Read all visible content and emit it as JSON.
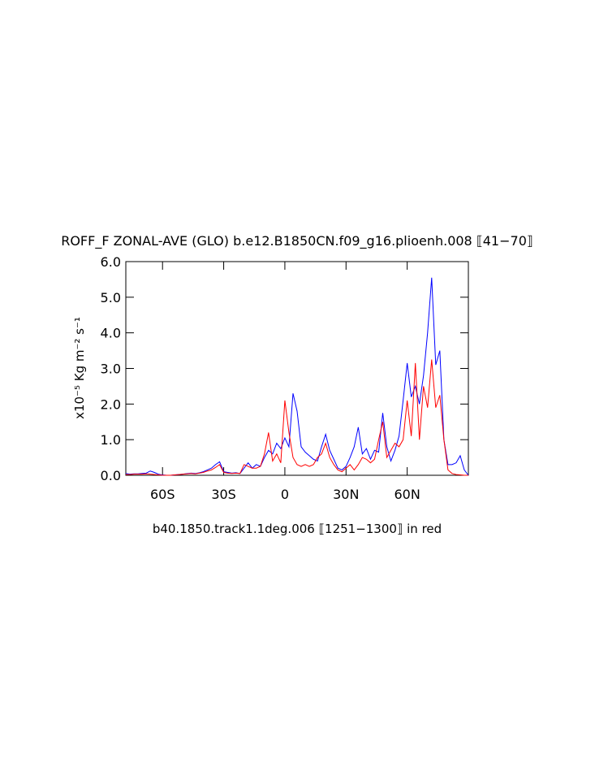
{
  "chart_data": {
    "type": "line",
    "title": "ROFF_F ZONAL-AVE (GLO) b.e12.B1850CN.f09_g16.plioenh.008 ⟦41−70⟧",
    "xlabel": "b40.1850.track1.1deg.006 ⟦1251−1300⟧ in red",
    "ylabel": "x10⁻⁵ Kg m⁻² s⁻¹",
    "x": [
      -78,
      -76,
      -74,
      -72,
      -70,
      -68,
      -66,
      -64,
      -62,
      -60,
      -58,
      -56,
      -54,
      -52,
      -50,
      -48,
      -46,
      -44,
      -42,
      -40,
      -38,
      -36,
      -34,
      -32,
      -30,
      -28,
      -26,
      -24,
      -22,
      -20,
      -18,
      -16,
      -14,
      -12,
      -10,
      -8,
      -6,
      -4,
      -2,
      0,
      2,
      4,
      6,
      8,
      10,
      12,
      14,
      16,
      18,
      20,
      22,
      24,
      26,
      28,
      30,
      32,
      34,
      36,
      38,
      40,
      42,
      44,
      46,
      48,
      50,
      52,
      54,
      56,
      58,
      60,
      62,
      64,
      66,
      68,
      70,
      72,
      74,
      76,
      78,
      80,
      82,
      84,
      86,
      88,
      90
    ],
    "series": [
      {
        "color": "#0000ff",
        "values": [
          0.05,
          0.03,
          0.04,
          0.04,
          0.05,
          0.06,
          0.12,
          0.08,
          0.03,
          0.01,
          0,
          0,
          0.01,
          0.02,
          0.03,
          0.05,
          0.06,
          0.05,
          0.07,
          0.1,
          0.15,
          0.2,
          0.3,
          0.38,
          0.1,
          0.08,
          0.06,
          0.07,
          0.05,
          0.2,
          0.35,
          0.2,
          0.3,
          0.25,
          0.5,
          0.7,
          0.6,
          0.9,
          0.75,
          1.05,
          0.8,
          2.3,
          1.8,
          0.8,
          0.65,
          0.55,
          0.45,
          0.4,
          0.8,
          1.15,
          0.7,
          0.45,
          0.2,
          0.15,
          0.25,
          0.5,
          0.8,
          1.35,
          0.6,
          0.75,
          0.45,
          0.7,
          0.65,
          1.75,
          0.8,
          0.4,
          0.7,
          1.1,
          2.1,
          3.15,
          2.2,
          2.5,
          2.0,
          2.8,
          4.0,
          5.55,
          3.1,
          3.5,
          1.0,
          0.3,
          0.3,
          0.35,
          0.55,
          0.15,
          0.0
        ]
      },
      {
        "color": "#ff0000",
        "values": [
          0.02,
          0.02,
          0.03,
          0.03,
          0.03,
          0.04,
          0.03,
          0.02,
          0.01,
          0,
          0,
          0,
          0.01,
          0.02,
          0.03,
          0.04,
          0.05,
          0.04,
          0.06,
          0.08,
          0.12,
          0.15,
          0.22,
          0.3,
          0.08,
          0.06,
          0.05,
          0.06,
          0.05,
          0.3,
          0.25,
          0.2,
          0.2,
          0.25,
          0.6,
          1.2,
          0.4,
          0.6,
          0.35,
          2.1,
          1.2,
          0.5,
          0.3,
          0.25,
          0.3,
          0.25,
          0.3,
          0.5,
          0.6,
          0.9,
          0.5,
          0.3,
          0.15,
          0.1,
          0.2,
          0.3,
          0.15,
          0.3,
          0.5,
          0.45,
          0.35,
          0.45,
          1.0,
          1.5,
          0.5,
          0.7,
          0.9,
          0.8,
          1.0,
          2.1,
          1.1,
          3.15,
          1.0,
          2.5,
          1.9,
          3.25,
          1.9,
          2.25,
          1.0,
          0.15,
          0.05,
          0.02,
          0.01,
          0,
          0
        ]
      }
    ],
    "xlim": [
      -78,
      90
    ],
    "ylim": [
      0,
      6
    ],
    "xticks": [
      {
        "value": -60,
        "label": "60S"
      },
      {
        "value": -30,
        "label": "30S"
      },
      0,
      {
        "value": 30,
        "label": "30N"
      },
      {
        "value": 60,
        "label": "60N"
      }
    ],
    "yticks": [
      {
        "value": 0,
        "label": "0.0"
      },
      {
        "value": 1,
        "label": "1.0"
      },
      {
        "value": 2,
        "label": "2.0"
      },
      {
        "value": 3,
        "label": "3.0"
      },
      {
        "value": 4,
        "label": "4.0"
      },
      {
        "value": 5,
        "label": "5.0"
      },
      {
        "value": 6,
        "label": "6.0"
      }
    ]
  }
}
